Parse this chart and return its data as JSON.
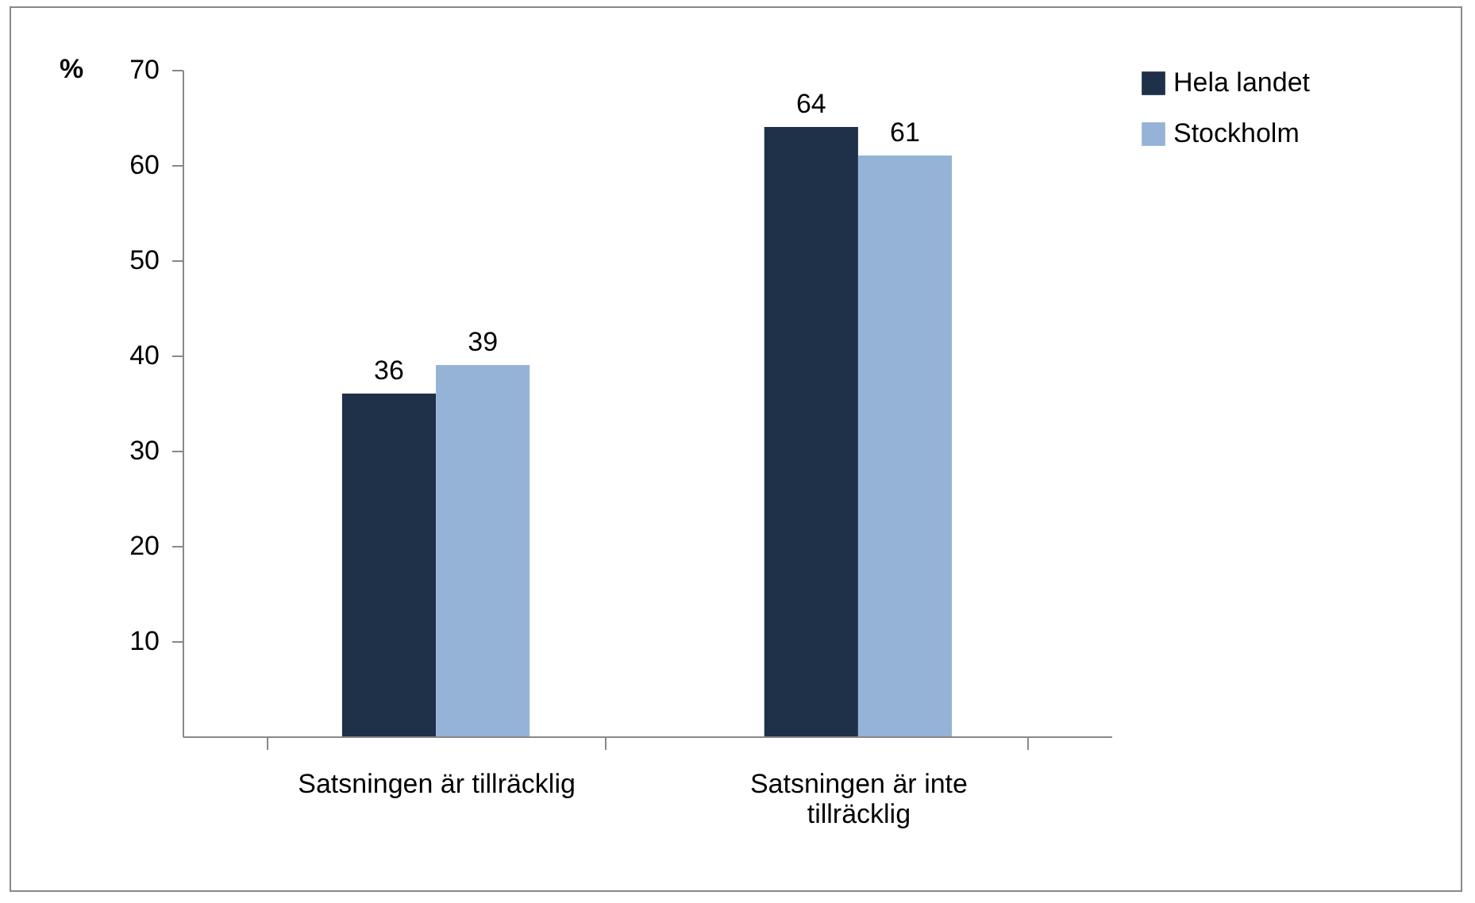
{
  "chart_data": {
    "type": "bar",
    "ylabel": "%",
    "categories": [
      "Satsningen är tillräcklig",
      "Satsningen är inte tillräcklig"
    ],
    "series": [
      {
        "name": "Hela  landet",
        "color": "#1f3049",
        "values": [
          36,
          64
        ]
      },
      {
        "name": "Stockholm",
        "color": "#95b3d7",
        "values": [
          39,
          61
        ]
      }
    ],
    "ylim": [
      0,
      70
    ],
    "yticks": [
      10,
      20,
      30,
      40,
      50,
      60,
      70
    ],
    "grid": false,
    "legend": "right",
    "data_labels": true
  }
}
